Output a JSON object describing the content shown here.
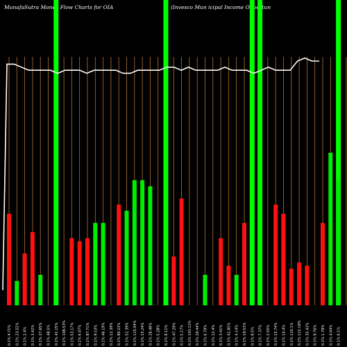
{
  "chart_data": {
    "type": "bar",
    "title_left": "MunafaSutra Money Flow Charts for OIA",
    "title_right": "(Invesco  Mun                                 icipal Income  Opportun",
    "colors": {
      "up": "#00ee00",
      "down": "#ff1111",
      "line": "#ffffff",
      "grid": "#b87333",
      "highlight": "#00ff00"
    },
    "ylim": [
      0,
      100
    ],
    "categories": [
      "0.1% 4.71%",
      "0.1% 23.52%",
      "0.1% 2.4%",
      "0.1% 3.42%",
      "0.1% 27.65%",
      "0.1% 48.5%",
      "0.1% 41.15%",
      "0.1% 108.53%",
      "0.1% 53.17%",
      "0.1% 6.07%",
      "0.1% 87.71%",
      "0.1% 9.53%",
      "0.1% 46.19%",
      "0.1% 12.39%",
      "0.1% 80.23%",
      "0.1% 52.39%",
      "0.1% 115.04%",
      "0.1% 15.24%",
      "0.1% 28.48%",
      "0.1% 5.28%",
      "0.1% 8.11%",
      "0.1% 47.29%",
      "0.1% 5.17%",
      "0.1% 103.12%",
      "0.1% 20.44%",
      "0.1% 6.78%",
      "0.1% 12.4%",
      "0.1% 3.41%",
      "0.1% 41.85%",
      "0.1% 4.14%",
      "0.1% 19.53%",
      "0.1% 8.5%",
      "0.1% 7.37%",
      "0.1% 2.55%",
      "0.1% 15.74%",
      "0.1% 14.4%",
      "0.1% 110.1%",
      "0.1% 112.18%",
      "0.1% 35.43%",
      "0.1% 9.76%",
      "0.1% 1.78%",
      "0.1% 4.04%",
      "0.1% 0.1%"
    ],
    "values": [
      30,
      8,
      17,
      24,
      10,
      0,
      0,
      0,
      22,
      21,
      22,
      27,
      27,
      0,
      33,
      31,
      41,
      41,
      39,
      0,
      0,
      16,
      35,
      0,
      0,
      10,
      0,
      22,
      13,
      10,
      27,
      0,
      0,
      0,
      33,
      30,
      12,
      14,
      13,
      6,
      0,
      26,
      0
    ],
    "directions": [
      "down",
      "up",
      "down",
      "down",
      "up",
      "none",
      "none",
      "none",
      "down",
      "down",
      "down",
      "up",
      "up",
      "none",
      "down",
      "up",
      "up",
      "up",
      "up",
      "none",
      "none",
      "down",
      "down",
      "none",
      "none",
      "up",
      "none",
      "down",
      "down",
      "up",
      "down",
      "none",
      "none",
      "none",
      "down",
      "down",
      "down",
      "down",
      "down",
      "down",
      "none",
      "down",
      "none"
    ],
    "highlighted": [
      false,
      false,
      false,
      false,
      false,
      false,
      true,
      false,
      false,
      false,
      false,
      false,
      false,
      false,
      false,
      false,
      false,
      false,
      false,
      false,
      true,
      false,
      false,
      false,
      false,
      false,
      false,
      false,
      false,
      false,
      false,
      true,
      true,
      false,
      false,
      false,
      false,
      false,
      false,
      false,
      false,
      false,
      true
    ],
    "extra_bars": [
      {
        "index": 39,
        "value": 0,
        "direction": "up"
      },
      {
        "index": 40,
        "value": 27,
        "direction": "down"
      },
      {
        "index": 41,
        "value": 50,
        "direction": "up"
      },
      {
        "index": 42,
        "value": 41,
        "direction": "up"
      },
      {
        "index": 43,
        "value": 0,
        "direction": "none"
      }
    ],
    "line_values": [
      5,
      79,
      79,
      78,
      77,
      77,
      77,
      77,
      76,
      77,
      77,
      77,
      76,
      77,
      77,
      77,
      77,
      76,
      76,
      77,
      77,
      77,
      77,
      78,
      78,
      77,
      78,
      77,
      77,
      77,
      77,
      78,
      77,
      77,
      77,
      76,
      77,
      78,
      77,
      77,
      77,
      80,
      81,
      80,
      80
    ]
  }
}
